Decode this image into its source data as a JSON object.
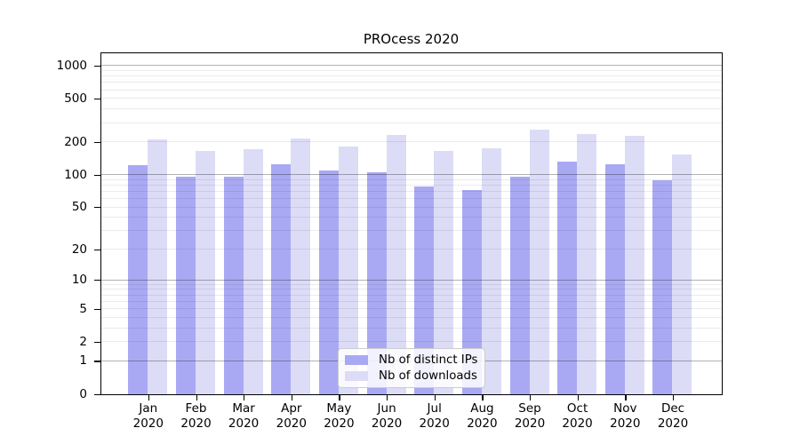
{
  "title": "PROcess 2020",
  "legend": {
    "items": [
      {
        "label": "Nb of distinct IPs",
        "color": "#a9a9f3"
      },
      {
        "label": "Nb of downloads",
        "color": "#dcdcf7"
      }
    ]
  },
  "colors": {
    "ips_bar": "#a9a9f3",
    "downloads_bar": "#dcdcf7",
    "grid_major": "rgba(0,0,0,0.30)",
    "grid_minor": "rgba(0,0,0,0.08)",
    "axis": "#000000"
  },
  "chart_data": {
    "type": "bar",
    "title": "PROcess 2020",
    "categories": [
      "Jan",
      "Feb",
      "Mar",
      "Apr",
      "May",
      "Jun",
      "Jul",
      "Aug",
      "Sep",
      "Oct",
      "Nov",
      "Dec"
    ],
    "category_year": "2020",
    "series": [
      {
        "name": "Nb of distinct IPs",
        "values": [
          123,
          96,
          97,
          125,
          111,
          107,
          79,
          73,
          97,
          132,
          126,
          89
        ]
      },
      {
        "name": "Nb of downloads",
        "values": [
          212,
          166,
          174,
          217,
          183,
          233,
          166,
          175,
          263,
          238,
          229,
          155
        ]
      }
    ],
    "yscale": "log1p",
    "ytick_values": [
      0,
      1,
      2,
      5,
      10,
      20,
      50,
      100,
      200,
      500,
      1000
    ],
    "ylim": [
      0,
      1280
    ],
    "grid": "on",
    "legend_position": "lower-center"
  }
}
